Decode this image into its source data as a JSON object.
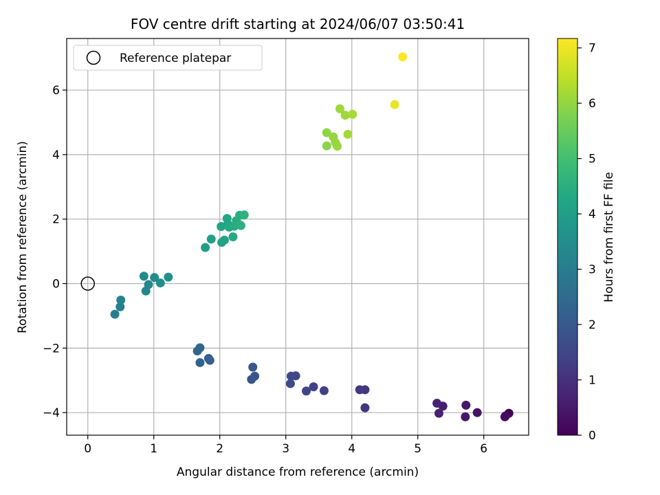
{
  "chart_data": {
    "type": "scatter",
    "title": "FOV centre drift starting at 2024/06/07 03:50:41",
    "xlabel": "Angular distance from reference (arcmin)",
    "ylabel": "Rotation from reference (arcmin)",
    "xlim": [
      -0.32,
      6.68
    ],
    "ylim": [
      -4.7,
      7.6
    ],
    "xticks": [
      0,
      1,
      2,
      3,
      4,
      5,
      6
    ],
    "yticks": [
      -4,
      -2,
      0,
      2,
      4,
      6
    ],
    "grid": true,
    "legend": {
      "position": "upper-left",
      "entries": [
        "Reference platepar"
      ]
    },
    "reference_point": {
      "x": 0,
      "y": 0
    },
    "colorbar": {
      "label": "Hours from first FF file",
      "range": [
        0,
        7.17
      ],
      "ticks": [
        0,
        1,
        2,
        3,
        4,
        5,
        6,
        7
      ],
      "colormap": "viridis"
    },
    "points": [
      {
        "x": 6.38,
        "y": -4.02,
        "c": 0.05
      },
      {
        "x": 6.32,
        "y": -4.13,
        "c": 0.12
      },
      {
        "x": 6.33,
        "y": -4.1,
        "c": 0.2
      },
      {
        "x": 5.9,
        "y": -4.0,
        "c": 0.35
      },
      {
        "x": 5.72,
        "y": -4.13,
        "c": 0.45
      },
      {
        "x": 5.73,
        "y": -3.77,
        "c": 0.5
      },
      {
        "x": 5.38,
        "y": -3.8,
        "c": 0.62
      },
      {
        "x": 5.32,
        "y": -4.02,
        "c": 0.66
      },
      {
        "x": 5.29,
        "y": -3.71,
        "c": 0.7
      },
      {
        "x": 4.2,
        "y": -3.85,
        "c": 1.1
      },
      {
        "x": 4.2,
        "y": -3.29,
        "c": 1.15
      },
      {
        "x": 4.12,
        "y": -3.29,
        "c": 1.2
      },
      {
        "x": 3.58,
        "y": -3.32,
        "c": 1.35
      },
      {
        "x": 3.42,
        "y": -3.2,
        "c": 1.4
      },
      {
        "x": 3.31,
        "y": -3.33,
        "c": 1.45
      },
      {
        "x": 3.15,
        "y": -2.86,
        "c": 1.5
      },
      {
        "x": 3.08,
        "y": -2.87,
        "c": 1.55
      },
      {
        "x": 3.07,
        "y": -3.1,
        "c": 1.6
      },
      {
        "x": 2.53,
        "y": -2.87,
        "c": 1.85
      },
      {
        "x": 2.48,
        "y": -2.97,
        "c": 1.9
      },
      {
        "x": 2.5,
        "y": -2.59,
        "c": 1.95
      },
      {
        "x": 1.85,
        "y": -2.38,
        "c": 2.15
      },
      {
        "x": 1.83,
        "y": -2.32,
        "c": 2.2
      },
      {
        "x": 1.7,
        "y": -2.45,
        "c": 2.28
      },
      {
        "x": 1.7,
        "y": -1.99,
        "c": 2.32
      },
      {
        "x": 1.66,
        "y": -2.09,
        "c": 2.36
      },
      {
        "x": 0.41,
        "y": -0.95,
        "c": 3.05
      },
      {
        "x": 0.49,
        "y": -0.72,
        "c": 3.1
      },
      {
        "x": 0.5,
        "y": -0.51,
        "c": 3.15
      },
      {
        "x": 0.88,
        "y": -0.23,
        "c": 3.3
      },
      {
        "x": 0.92,
        "y": -0.03,
        "c": 3.35
      },
      {
        "x": 0.85,
        "y": 0.23,
        "c": 3.4
      },
      {
        "x": 1.01,
        "y": 0.19,
        "c": 3.45
      },
      {
        "x": 1.1,
        "y": 0.02,
        "c": 3.5
      },
      {
        "x": 1.22,
        "y": 0.2,
        "c": 3.55
      },
      {
        "x": 1.78,
        "y": 1.12,
        "c": 4.0
      },
      {
        "x": 1.87,
        "y": 1.38,
        "c": 4.05
      },
      {
        "x": 2.03,
        "y": 1.28,
        "c": 4.1
      },
      {
        "x": 2.07,
        "y": 1.35,
        "c": 4.15
      },
      {
        "x": 2.02,
        "y": 1.77,
        "c": 4.2
      },
      {
        "x": 2.11,
        "y": 2.02,
        "c": 4.25
      },
      {
        "x": 2.12,
        "y": 1.85,
        "c": 4.28
      },
      {
        "x": 2.14,
        "y": 1.75,
        "c": 4.3
      },
      {
        "x": 2.2,
        "y": 1.45,
        "c": 4.34
      },
      {
        "x": 2.22,
        "y": 1.78,
        "c": 4.38
      },
      {
        "x": 2.25,
        "y": 1.95,
        "c": 4.42
      },
      {
        "x": 2.28,
        "y": 1.85,
        "c": 4.46
      },
      {
        "x": 2.3,
        "y": 2.12,
        "c": 4.5
      },
      {
        "x": 2.32,
        "y": 1.8,
        "c": 4.54
      },
      {
        "x": 2.37,
        "y": 2.13,
        "c": 4.58
      },
      {
        "x": 3.62,
        "y": 4.27,
        "c": 5.9
      },
      {
        "x": 3.62,
        "y": 4.68,
        "c": 5.95
      },
      {
        "x": 3.72,
        "y": 4.55,
        "c": 6.0
      },
      {
        "x": 3.75,
        "y": 4.38,
        "c": 6.03
      },
      {
        "x": 3.78,
        "y": 4.26,
        "c": 6.06
      },
      {
        "x": 3.82,
        "y": 5.42,
        "c": 6.1
      },
      {
        "x": 3.9,
        "y": 5.22,
        "c": 6.13
      },
      {
        "x": 3.94,
        "y": 4.63,
        "c": 6.16
      },
      {
        "x": 4.01,
        "y": 5.25,
        "c": 6.2
      },
      {
        "x": 4.65,
        "y": 5.55,
        "c": 6.95
      },
      {
        "x": 4.77,
        "y": 7.03,
        "c": 7.17
      }
    ]
  }
}
